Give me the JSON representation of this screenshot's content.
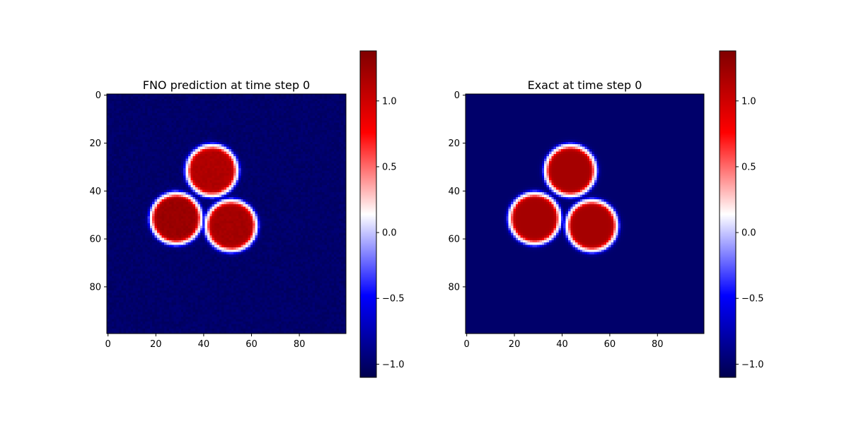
{
  "chart_data": [
    {
      "type": "heatmap",
      "title": "FNO prediction at time step 0",
      "xlabel": "",
      "ylabel": "",
      "xlim": [
        0,
        100
      ],
      "ylim": [
        100,
        0
      ],
      "x_ticks": [
        0,
        20,
        40,
        60,
        80
      ],
      "y_ticks": [
        0,
        20,
        40,
        60,
        80
      ],
      "x_tick_labels": [
        "0",
        "20",
        "40",
        "60",
        "80"
      ],
      "y_tick_labels": [
        "0",
        "20",
        "40",
        "60",
        "80"
      ],
      "grid_size": [
        100,
        100
      ],
      "background_value": -1.0,
      "blobs": [
        {
          "cx": 44,
          "cy": 32,
          "r": 10.5,
          "value": 1.15
        },
        {
          "cx": 29,
          "cy": 52,
          "r": 10.5,
          "value": 1.25
        },
        {
          "cx": 52,
          "cy": 55,
          "r": 10.5,
          "value": 1.2
        }
      ],
      "interface_value": 0.15,
      "noise_amplitude": 0.08,
      "colormap": "seismic",
      "colorbar": {
        "range": [
          -1.1,
          1.38
        ],
        "ticks": [
          -1.0,
          -0.5,
          0.0,
          0.5,
          1.0
        ],
        "tick_labels": [
          "−1.0",
          "−0.5",
          "0.0",
          "0.5",
          "1.0"
        ]
      }
    },
    {
      "type": "heatmap",
      "title": "Exact at time step 0",
      "xlabel": "",
      "ylabel": "",
      "xlim": [
        0,
        100
      ],
      "ylim": [
        100,
        0
      ],
      "x_ticks": [
        0,
        20,
        40,
        60,
        80
      ],
      "y_ticks": [
        0,
        20,
        40,
        60,
        80
      ],
      "x_tick_labels": [
        "0",
        "20",
        "40",
        "60",
        "80"
      ],
      "y_tick_labels": [
        "0",
        "20",
        "40",
        "60",
        "80"
      ],
      "grid_size": [
        100,
        100
      ],
      "background_value": -1.0,
      "blobs": [
        {
          "cx": 44,
          "cy": 32,
          "r": 10.5,
          "value": 1.2
        },
        {
          "cx": 29,
          "cy": 52,
          "r": 10.5,
          "value": 1.2
        },
        {
          "cx": 53,
          "cy": 55,
          "r": 10.5,
          "value": 1.2
        }
      ],
      "interface_value": 0.15,
      "noise_amplitude": 0.0,
      "colormap": "seismic",
      "colorbar": {
        "range": [
          -1.1,
          1.38
        ],
        "ticks": [
          -1.0,
          -0.5,
          0.0,
          0.5,
          1.0
        ],
        "tick_labels": [
          "−1.0",
          "−0.5",
          "0.0",
          "0.5",
          "1.0"
        ]
      }
    }
  ]
}
